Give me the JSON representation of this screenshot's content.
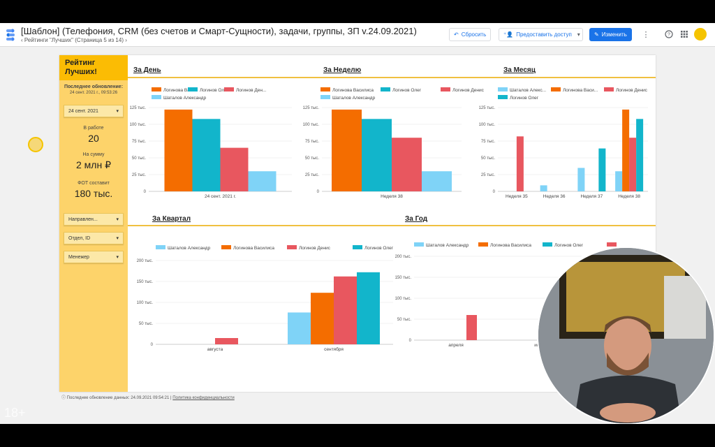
{
  "header": {
    "title": "[Шаблон] (Телефония, CRM (без счетов и Смарт-Сущности), задачи, группы, ЗП v.24.09.2021)",
    "breadcrumb": "‹  Рейтинги \"Лучших\" (Страница 5 из 14)  ›",
    "reset_label": "Сбросить",
    "share_label": "Предоставить доступ",
    "edit_label": "Изменить",
    "icons": [
      "more-vert-icon",
      "help-icon",
      "apps-grid-icon"
    ]
  },
  "sidebar": {
    "title": "Рейтинг Лучших!",
    "last_update_label": "Последнее обновление:",
    "last_update_value": "24 сент. 2021 г., 09:53:26",
    "date_filter": "24 сент. 2021",
    "in_work_label": "В работе",
    "in_work_value": "20",
    "sum_label": "На сумму",
    "sum_value": "2 млн ₽",
    "fot_label": "ФОТ составит",
    "fot_value": "180 тыс.",
    "filters": [
      "Направлен...",
      "Отдел, ID",
      "Менежер"
    ]
  },
  "sections": {
    "day": "За День",
    "week": "За Неделю",
    "month": "За Месяц",
    "quarter": "За Квартал",
    "year": "За Год"
  },
  "footer": {
    "text": "Последнее обновление данных: 24.09.2021 09:54:21",
    "privacy": "Политика конфиденциальности"
  },
  "overlay": {
    "age": "18+"
  },
  "colors": {
    "orange": "#f46d00",
    "teal": "#12b5cb",
    "red": "#e8575f",
    "lightblue": "#7fd3f7",
    "gold": "#fbbc04"
  },
  "chart_data": [
    {
      "type": "bar",
      "title": "За День",
      "categories": [
        "24 сент. 2021 г."
      ],
      "series": [
        {
          "name": "Логинова Ва...",
          "color": "#f46d00",
          "values": [
            122000
          ]
        },
        {
          "name": "Логинов Олег",
          "color": "#12b5cb",
          "values": [
            108000
          ]
        },
        {
          "name": "Логинов Ден...",
          "color": "#e8575f",
          "values": [
            65000
          ]
        },
        {
          "name": "Шаталов Александр",
          "color": "#7fd3f7",
          "values": [
            30000
          ]
        }
      ],
      "yticks": [
        "0",
        "25 тыс.",
        "50 тыс.",
        "75 тыс.",
        "100 тыс.",
        "125 тыс."
      ],
      "ylim": [
        0,
        125000
      ]
    },
    {
      "type": "bar",
      "title": "За Неделю",
      "categories": [
        "Неделя 38"
      ],
      "series": [
        {
          "name": "Логинова Василиса",
          "color": "#f46d00",
          "values": [
            122000
          ]
        },
        {
          "name": "Логинов Олег",
          "color": "#12b5cb",
          "values": [
            108000
          ]
        },
        {
          "name": "Логинов Денис",
          "color": "#e8575f",
          "values": [
            80000
          ]
        },
        {
          "name": "Шаталов Александр",
          "color": "#7fd3f7",
          "values": [
            30000
          ]
        }
      ],
      "yticks": [
        "0",
        "25 тыс.",
        "50 тыс.",
        "75 тыс.",
        "100 тыс.",
        "125 тыс."
      ],
      "ylim": [
        0,
        125000
      ]
    },
    {
      "type": "bar",
      "title": "За Месяц",
      "categories": [
        "Неделя 35",
        "Неделя 36",
        "Неделя 37",
        "Неделя 38"
      ],
      "series": [
        {
          "name": "Шаталов Алекс...",
          "color": "#7fd3f7",
          "values": [
            0,
            9000,
            35000,
            30000
          ]
        },
        {
          "name": "Логинова Васи...",
          "color": "#f46d00",
          "values": [
            0,
            0,
            0,
            122000
          ]
        },
        {
          "name": "Логинов Денис",
          "color": "#e8575f",
          "values": [
            82000,
            0,
            0,
            80000
          ]
        },
        {
          "name": "Логинов Олег",
          "color": "#12b5cb",
          "values": [
            0,
            0,
            64000,
            108000
          ]
        }
      ],
      "yticks": [
        "0",
        "25 тыс.",
        "50 тыс.",
        "75 тыс.",
        "100 тыс.",
        "125 тыс."
      ],
      "ylim": [
        0,
        125000
      ]
    },
    {
      "type": "bar",
      "title": "За Квартал",
      "categories": [
        "августа",
        "сентября"
      ],
      "series": [
        {
          "name": "Шаталов Александр",
          "color": "#7fd3f7",
          "values": [
            0,
            76000
          ]
        },
        {
          "name": "Логинова Василиса",
          "color": "#f46d00",
          "values": [
            0,
            123000
          ]
        },
        {
          "name": "Логинов Денис",
          "color": "#e8575f",
          "values": [
            15000,
            162000
          ]
        },
        {
          "name": "Логинов Олег",
          "color": "#12b5cb",
          "values": [
            0,
            172000
          ]
        }
      ],
      "yticks": [
        "0",
        "50 тыс.",
        "100 тыс.",
        "150 тыс.",
        "200 тыс."
      ],
      "ylim": [
        0,
        200000
      ]
    },
    {
      "type": "bar",
      "title": "За Год",
      "categories": [
        "апреля",
        "июня"
      ],
      "series": [
        {
          "name": "Шаталов Александр",
          "color": "#7fd3f7",
          "values": [
            0,
            0
          ]
        },
        {
          "name": "Логинова Василиса",
          "color": "#f46d00",
          "values": [
            0,
            0
          ]
        },
        {
          "name": "Логинов Олег",
          "color": "#12b5cb",
          "values": [
            0,
            20000
          ]
        },
        {
          "name": "",
          "color": "#e8575f",
          "values": [
            60000,
            0
          ]
        }
      ],
      "yticks": [
        "0",
        "50 тыс.",
        "100 тыс.",
        "150 тыс.",
        "200 тыс."
      ],
      "ylim": [
        0,
        200000
      ]
    }
  ]
}
